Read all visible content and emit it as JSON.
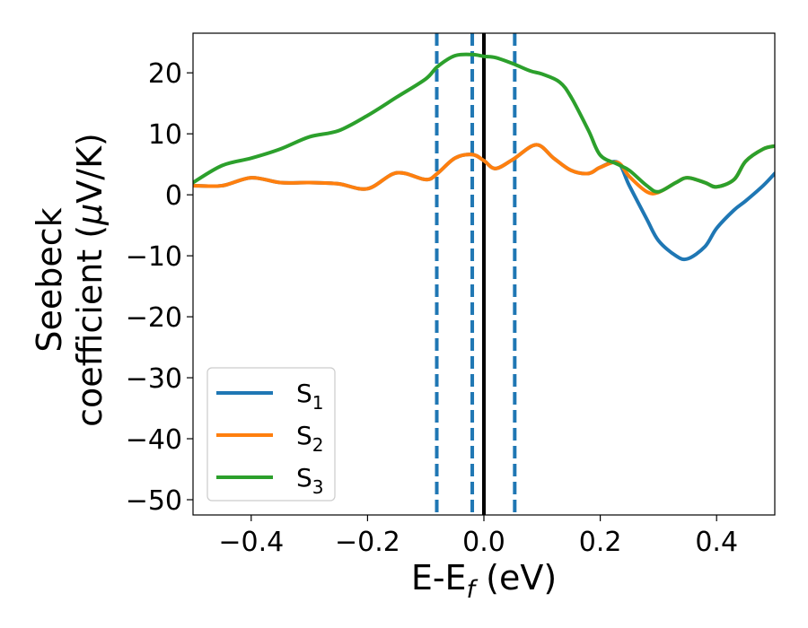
{
  "chart_data": {
    "type": "line",
    "xlabel": "E-E",
    "xlabel_sub": "f",
    "xlabel_unit": " (eV)",
    "ylabel_line1": "Seebeck",
    "ylabel_line2": "coefficient  (",
    "ylabel_mu": "μ",
    "ylabel_unit": "V/K)",
    "xlim": [
      -0.5,
      0.5
    ],
    "ylim": [
      -52.5,
      26.5
    ],
    "xticks": [
      -0.4,
      -0.2,
      0.0,
      0.2,
      0.4
    ],
    "xtick_labels": [
      "−0.4",
      "−0.2",
      "0.0",
      "0.2",
      "0.4"
    ],
    "yticks": [
      20,
      10,
      0,
      -10,
      -20,
      -30,
      -40,
      -50
    ],
    "ytick_labels": [
      "20",
      "10",
      "0",
      "−10",
      "−20",
      "−30",
      "−40",
      "−50"
    ],
    "legend_position": "lower-left",
    "vlines": [
      {
        "x": -0.081,
        "style": "dashed",
        "color": "#1f77b4"
      },
      {
        "x": -0.02,
        "style": "dashed",
        "color": "#1f77b4"
      },
      {
        "x": 0.053,
        "style": "dashed",
        "color": "#1f77b4"
      },
      {
        "x": 0.0,
        "style": "solid",
        "color": "#000000"
      }
    ],
    "series": [
      {
        "name": "S",
        "sub": "1",
        "color": "#1f77b4",
        "x": [
          -0.5,
          -0.45,
          -0.4,
          -0.35,
          -0.3,
          -0.25,
          -0.2,
          -0.15,
          -0.1,
          -0.08,
          -0.05,
          -0.02,
          0.0,
          0.02,
          0.05,
          0.09,
          0.12,
          0.15,
          0.18,
          0.2,
          0.23,
          0.25,
          0.28,
          0.3,
          0.33,
          0.35,
          0.38,
          0.4,
          0.43,
          0.45,
          0.48,
          0.5
        ],
        "values": [
          1.5,
          1.5,
          2.8,
          2.0,
          2.0,
          1.8,
          1.0,
          3.6,
          2.5,
          3.5,
          6.0,
          6.6,
          5.6,
          4.3,
          5.8,
          8.2,
          6.0,
          4.0,
          3.5,
          4.5,
          5.3,
          1.5,
          -4.0,
          -7.5,
          -10.0,
          -10.5,
          -8.5,
          -5.5,
          -2.5,
          -1.0,
          1.5,
          3.5
        ]
      },
      {
        "name": "S",
        "sub": "2",
        "color": "#ff7f0e",
        "x": [
          -0.5,
          -0.45,
          -0.4,
          -0.35,
          -0.3,
          -0.25,
          -0.2,
          -0.15,
          -0.1,
          -0.08,
          -0.05,
          -0.02,
          0.0,
          0.02,
          0.05,
          0.09,
          0.12,
          0.15,
          0.18,
          0.2,
          0.23,
          0.25,
          0.28,
          0.3,
          0.33,
          0.35,
          0.38,
          0.4,
          0.43,
          0.45,
          0.48,
          0.5
        ],
        "values": [
          1.5,
          1.5,
          2.8,
          2.0,
          2.0,
          1.8,
          1.0,
          3.6,
          2.5,
          3.5,
          6.0,
          6.6,
          5.6,
          4.3,
          5.8,
          8.2,
          6.0,
          4.0,
          3.5,
          4.5,
          5.3,
          3.0,
          0.5,
          0.4,
          2.0,
          2.8,
          2.0,
          1.3,
          2.5,
          5.5,
          7.5,
          8.0
        ]
      },
      {
        "name": "S",
        "sub": "3",
        "color": "#2ca02c",
        "x": [
          -0.5,
          -0.45,
          -0.4,
          -0.35,
          -0.3,
          -0.25,
          -0.2,
          -0.15,
          -0.1,
          -0.08,
          -0.05,
          -0.02,
          0.0,
          0.02,
          0.05,
          0.08,
          0.1,
          0.13,
          0.15,
          0.18,
          0.2,
          0.23,
          0.25,
          0.28,
          0.3,
          0.33,
          0.35,
          0.38,
          0.4,
          0.43,
          0.45,
          0.48,
          0.5
        ],
        "values": [
          2.0,
          4.8,
          6.0,
          7.5,
          9.5,
          10.5,
          13.0,
          16.0,
          19.0,
          21.0,
          22.8,
          23.0,
          22.7,
          22.5,
          21.5,
          20.3,
          19.8,
          18.5,
          16.0,
          10.5,
          6.5,
          5.0,
          4.0,
          1.5,
          0.5,
          2.0,
          2.8,
          2.0,
          1.3,
          2.5,
          5.5,
          7.5,
          8.0
        ]
      }
    ]
  }
}
